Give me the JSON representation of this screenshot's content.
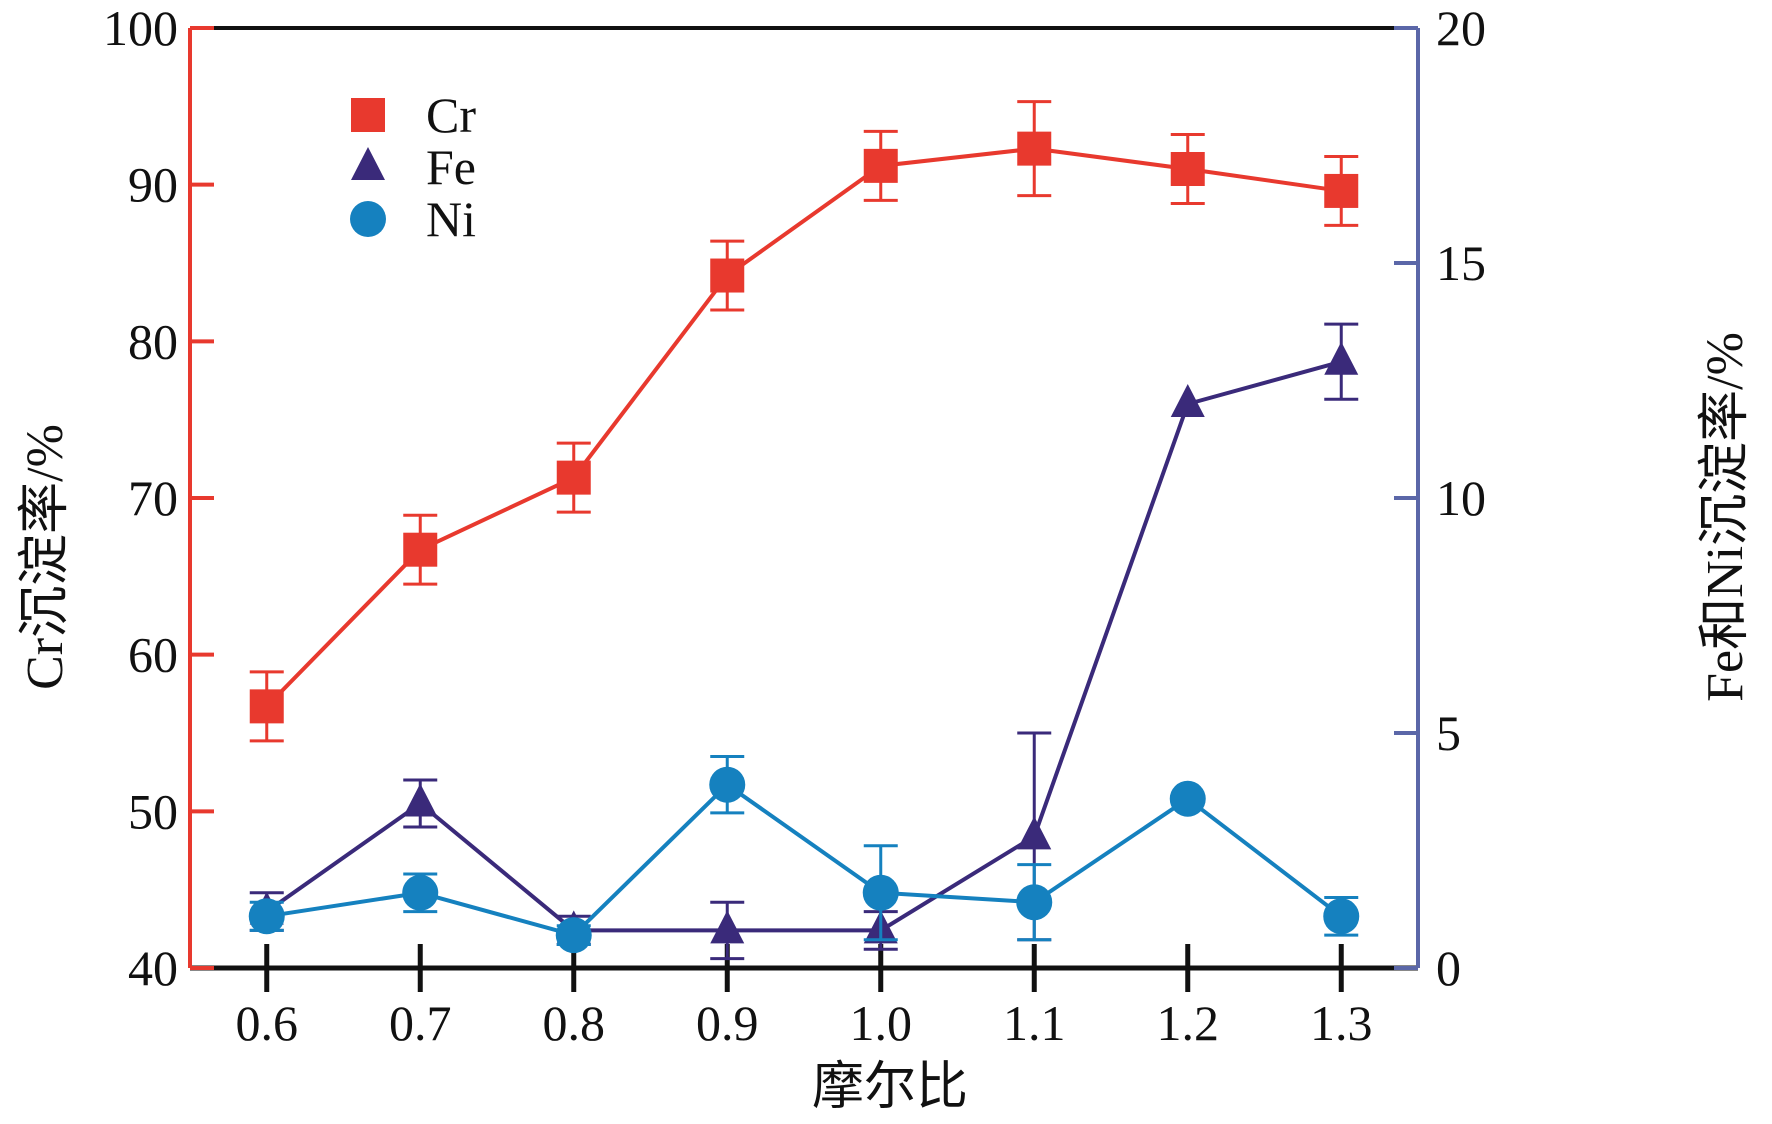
{
  "chart_data": {
    "type": "line",
    "title": "",
    "xlabel": "摩尔比",
    "ylabel_left": "Cr沉淀率/%",
    "ylabel_right": "Fe和Ni沉淀率/%",
    "x": [
      0.6,
      0.7,
      0.8,
      0.9,
      1.0,
      1.1,
      1.2,
      1.3
    ],
    "x_tick_labels": [
      "0.6",
      "0.7",
      "0.8",
      "0.9",
      "1.0",
      "1.1",
      "1.2",
      "1.3"
    ],
    "xlim": [
      0.55,
      1.35
    ],
    "ylim_left": [
      40,
      100
    ],
    "ylim_right": [
      0,
      20
    ],
    "y_left_ticks": [
      "40",
      "50",
      "60",
      "70",
      "80",
      "90",
      "100"
    ],
    "y_right_ticks": [
      "0",
      "5",
      "10",
      "15",
      "20"
    ],
    "grid": false,
    "legend_position": "top-left",
    "series": [
      {
        "name": "Cr",
        "axis": "left",
        "marker": "square",
        "color": "#e8392e",
        "values": [
          56.7,
          66.7,
          71.3,
          84.2,
          91.2,
          92.3,
          91.0,
          89.6
        ],
        "errors": [
          2.2,
          2.2,
          2.2,
          2.2,
          2.2,
          3.0,
          2.2,
          2.2
        ]
      },
      {
        "name": "Fe",
        "axis": "right",
        "marker": "triangle",
        "color": "#3a2a7a",
        "values": [
          1.2,
          3.5,
          0.8,
          0.8,
          0.8,
          2.8,
          12.0,
          12.9
        ],
        "errors": [
          0.4,
          0.5,
          0.3,
          0.6,
          0.4,
          2.2,
          null,
          0.8
        ]
      },
      {
        "name": "Ni",
        "axis": "right",
        "marker": "circle",
        "color": "#1581bf",
        "values": [
          1.1,
          1.6,
          0.7,
          3.9,
          1.6,
          1.4,
          3.6,
          1.1
        ],
        "errors": [
          0.3,
          0.4,
          0.2,
          0.6,
          1.0,
          0.8,
          null,
          0.4
        ]
      }
    ],
    "colors": {
      "left_axis": "#e8392e",
      "right_axis": "#5b67a8",
      "frame": "#111111"
    }
  }
}
